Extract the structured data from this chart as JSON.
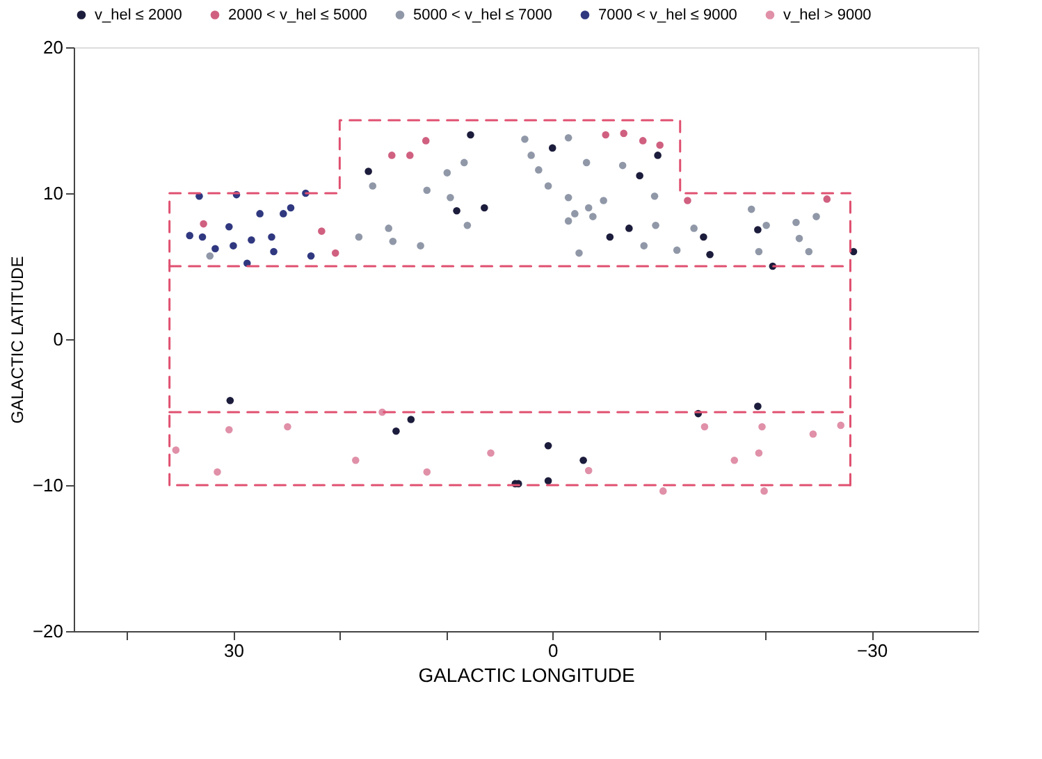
{
  "chart_data": {
    "type": "scatter",
    "xlabel": "GALACTIC LONGITUDE",
    "ylabel": "GALACTIC LATITUDE",
    "xlim": [
      45,
      -40
    ],
    "ylim": [
      -20,
      20
    ],
    "xticks": [
      {
        "value": 40,
        "label": null
      },
      30,
      {
        "value": 20,
        "label": null
      },
      {
        "value": 10,
        "label": null
      },
      0,
      {
        "value": -10,
        "label": null
      },
      {
        "value": -20,
        "label": null
      },
      -30
    ],
    "yticks": [
      -20,
      -10,
      0,
      10,
      20
    ],
    "grid": false,
    "legend": "top",
    "marker": "circle",
    "series": [
      {
        "name": "v_hel ≤ 2000",
        "color": "#1c1c3c",
        "x": [
          7.7,
          6.4,
          9.0,
          17.3,
          -8.2,
          -7.2,
          -5.4,
          -14.2,
          -14.8,
          -19.3,
          -20.7,
          -28.3,
          0.0,
          -9.9,
          30.3,
          13.3,
          14.7,
          3.5,
          -19.3,
          -13.7,
          0.4,
          -2.9,
          0.4,
          3.2
        ],
        "values": [
          14.0,
          9.0,
          8.8,
          11.5,
          11.2,
          7.6,
          7.0,
          7.0,
          5.8,
          7.5,
          5.0,
          6.0,
          13.1,
          12.6,
          -4.2,
          -5.5,
          -6.3,
          -9.9,
          -4.6,
          -5.1,
          -7.3,
          -8.3,
          -9.7,
          -9.9
        ]
      },
      {
        "name": "2000 < v_hel ≤ 5000",
        "color": "#d06080",
        "x": [
          11.9,
          15.1,
          13.4,
          -5.0,
          -6.7,
          -8.5,
          -10.1,
          -12.7,
          -25.8,
          21.7,
          20.4,
          32.8
        ],
        "values": [
          13.6,
          12.6,
          12.6,
          14.0,
          14.1,
          13.6,
          13.3,
          9.5,
          9.6,
          7.4,
          5.9,
          7.9
        ]
      },
      {
        "name": "5000 < v_hel ≤ 7000",
        "color": "#9098a8",
        "x": [
          9.9,
          8.3,
          11.8,
          9.6,
          8.0,
          15.4,
          15.0,
          12.4,
          18.2,
          16.9,
          32.2,
          2.6,
          2.0,
          -1.5,
          1.3,
          -3.2,
          -6.6,
          0.4,
          -1.5,
          -3.4,
          -4.8,
          -2.1,
          -1.5,
          -3.8,
          -9.6,
          -9.7,
          -8.6,
          -2.5,
          -13.3,
          -18.7,
          -20.1,
          -22.9,
          -24.8,
          -23.2,
          -24.1,
          -19.4,
          -11.7
        ],
        "values": [
          11.4,
          12.1,
          10.2,
          9.7,
          7.8,
          7.6,
          6.7,
          6.4,
          7.0,
          10.5,
          5.7,
          13.7,
          12.6,
          13.8,
          11.6,
          12.1,
          11.9,
          10.5,
          9.7,
          9.0,
          9.5,
          8.6,
          8.1,
          8.4,
          9.8,
          7.8,
          6.4,
          5.9,
          7.6,
          8.9,
          7.8,
          8.0,
          8.4,
          6.9,
          6.0,
          6.0,
          6.1
        ]
      },
      {
        "name": "7000 < v_hel ≤ 9000",
        "color": "#303880",
        "x": [
          33.2,
          29.7,
          23.2,
          24.6,
          25.3,
          27.5,
          30.4,
          34.1,
          32.9,
          31.7,
          30.0,
          28.3,
          26.4,
          26.2,
          28.7,
          22.7
        ],
        "values": [
          9.8,
          9.9,
          10.0,
          9.0,
          8.6,
          8.6,
          7.7,
          7.1,
          7.0,
          6.2,
          6.4,
          6.8,
          7.0,
          6.0,
          5.2,
          5.7
        ]
      },
      {
        "name": "v_hel > 9000",
        "color": "#e090a8",
        "x": [
          30.4,
          24.9,
          35.4,
          18.5,
          5.8,
          31.5,
          11.8,
          16.0,
          -14.3,
          -19.7,
          -19.4,
          -17.1,
          -24.5,
          -27.1,
          -10.4,
          -19.9,
          -3.4
        ],
        "values": [
          -6.2,
          -6.0,
          -7.6,
          -8.3,
          -7.8,
          -9.1,
          -9.1,
          -5.0,
          -6.0,
          -6.0,
          -7.8,
          -8.3,
          -6.5,
          -5.9,
          -10.4,
          -10.4,
          -9.0
        ]
      },
      {
        "type": "line",
        "color": "#e05070",
        "line_style": "dashed",
        "marker": "none",
        "x": [
          36,
          20,
          20,
          -12,
          -12,
          -28
        ],
        "values": [
          10,
          10,
          15,
          15,
          10,
          10
        ]
      },
      {
        "type": "line",
        "color": "#e05070",
        "line_style": "dashed",
        "marker": "none",
        "x": [
          36,
          -28
        ],
        "values": [
          5,
          5
        ]
      },
      {
        "type": "line",
        "color": "#e05070",
        "line_style": "dashed",
        "marker": "none",
        "x": [
          36,
          -28
        ],
        "values": [
          -5,
          -5
        ]
      },
      {
        "type": "line",
        "color": "#e05070",
        "line_style": "dashed",
        "marker": "none",
        "x": [
          -28,
          36
        ],
        "values": [
          -10,
          -10
        ]
      },
      {
        "type": "line",
        "color": "#e05070",
        "line_style": "dashed",
        "marker": "none",
        "x": [
          36,
          36
        ],
        "values": [
          -10,
          10
        ]
      },
      {
        "type": "line",
        "color": "#e05070",
        "line_style": "dashed",
        "marker": "none",
        "x": [
          -28,
          -28
        ],
        "values": [
          -10,
          10
        ]
      }
    ]
  }
}
